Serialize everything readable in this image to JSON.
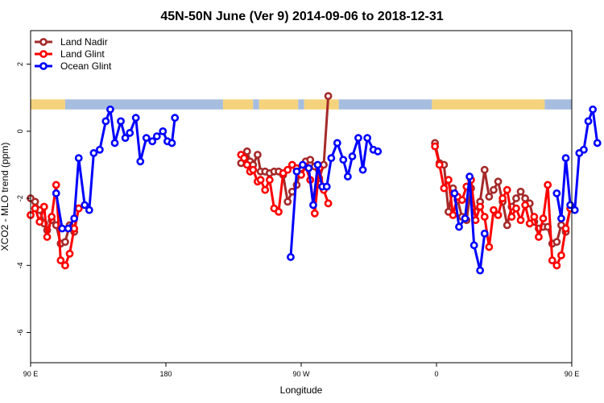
{
  "chart_data": {
    "type": "line",
    "title": "45N-50N June (Ver 9)   2014-09-06 to 2018-12-31",
    "xlabel": "Longitude",
    "ylabel": "XCO2 - MLO trend (ppm)",
    "xlim": [
      90,
      450
    ],
    "ylim": [
      -6.9,
      3.0
    ],
    "x_ticks": [
      {
        "value": 90,
        "label": "90 E"
      },
      {
        "value": 180,
        "label": "180"
      },
      {
        "value": 270,
        "label": "90 W"
      },
      {
        "value": 360,
        "label": "0"
      },
      {
        "value": 450,
        "label": "90 E"
      },
      {
        "value": 540,
        "label": "180"
      }
    ],
    "y_ticks": [
      {
        "value": 2,
        "label": "2"
      },
      {
        "value": 0,
        "label": "0"
      },
      {
        "value": -2,
        "label": "-2"
      },
      {
        "value": -4,
        "label": "-4"
      },
      {
        "value": -6,
        "label": "-6"
      }
    ],
    "land_mask_band": {
      "y_range": [
        0.65,
        0.95
      ],
      "land_color": "#F5D37C",
      "ocean_color": "#A6BDDF"
    },
    "legend_position": "top-left",
    "series": [
      {
        "name": "Land Nadir",
        "color": "#A52A2A",
        "segments": [
          [
            [
              90,
              -2.0
            ],
            [
              93,
              -2.1
            ],
            [
              96,
              -2.35
            ],
            [
              99,
              -2.75
            ],
            [
              101,
              -2.95
            ],
            [
              104,
              -2.65
            ],
            [
              107,
              -2.8
            ],
            [
              110,
              -3.35
            ],
            [
              113,
              -3.3
            ],
            [
              116,
              -2.8
            ],
            [
              119,
              -3.0
            ],
            [
              122,
              -2.3
            ]
          ],
          [
            [
              230,
              -0.95
            ],
            [
              232,
              -0.75
            ],
            [
              234,
              -0.6
            ],
            [
              236,
              -0.9
            ],
            [
              238,
              -1.0
            ],
            [
              241,
              -0.7
            ],
            [
              243,
              -1.2
            ],
            [
              246,
              -1.2
            ],
            [
              249,
              -1.25
            ],
            [
              252,
              -1.2
            ],
            [
              255,
              -1.2
            ],
            [
              258,
              -1.3
            ],
            [
              261,
              -2.1
            ],
            [
              264,
              -1.8
            ],
            [
              267,
              -1.6
            ],
            [
              270,
              -1.1
            ],
            [
              273,
              -0.9
            ],
            [
              276,
              -0.85
            ],
            [
              279,
              -1.05
            ],
            [
              282,
              -1.4
            ],
            [
              285,
              -1.0
            ],
            [
              288,
              1.05
            ]
          ],
          [
            [
              359,
              -0.35
            ],
            [
              362,
              -0.95
            ],
            [
              365,
              -1.0
            ],
            [
              368,
              -2.4
            ],
            [
              371,
              -1.7
            ],
            [
              374,
              -2.05
            ],
            [
              377,
              -2.55
            ],
            [
              380,
              -2.65
            ],
            [
              383,
              -1.7
            ],
            [
              386,
              -2.4
            ],
            [
              389,
              -2.1
            ],
            [
              392,
              -1.15
            ],
            [
              395,
              -1.95
            ],
            [
              398,
              -1.75
            ],
            [
              401,
              -1.5
            ],
            [
              404,
              -2.1
            ],
            [
              407,
              -2.8
            ],
            [
              410,
              -2.25
            ],
            [
              413,
              -2.0
            ],
            [
              416,
              -1.8
            ],
            [
              419,
              -2.0
            ],
            [
              422,
              -2.15
            ],
            [
              425,
              -2.7
            ],
            [
              428,
              -2.9
            ],
            [
              431,
              -2.85
            ],
            [
              434,
              -2.85
            ],
            [
              437,
              -3.35
            ],
            [
              440,
              -3.3
            ],
            [
              443,
              -2.8
            ],
            [
              446,
              -3.0
            ],
            [
              449,
              -2.3
            ]
          ]
        ]
      },
      {
        "name": "Land Glint",
        "color": "#FF0000",
        "segments": [
          [
            [
              90,
              -2.5
            ],
            [
              93,
              -2.3
            ],
            [
              96,
              -2.7
            ],
            [
              99,
              -2.25
            ],
            [
              101,
              -3.15
            ],
            [
              104,
              -2.55
            ],
            [
              107,
              -1.6
            ],
            [
              110,
              -3.85
            ],
            [
              113,
              -4.0
            ],
            [
              116,
              -3.65
            ],
            [
              119,
              -2.9
            ],
            [
              122,
              -2.3
            ]
          ],
          [
            [
              230,
              -0.7
            ],
            [
              232,
              -0.8
            ],
            [
              234,
              -1.0
            ],
            [
              236,
              -1.2
            ],
            [
              238,
              -1.15
            ],
            [
              241,
              -1.5
            ],
            [
              243,
              -1.45
            ],
            [
              246,
              -1.75
            ],
            [
              249,
              -1.45
            ],
            [
              252,
              -2.3
            ],
            [
              255,
              -2.4
            ],
            [
              258,
              -1.25
            ],
            [
              261,
              -1.15
            ],
            [
              264,
              -1.0
            ],
            [
              267,
              -1.1
            ],
            [
              270,
              -1.3
            ],
            [
              273,
              -1.05
            ],
            [
              276,
              -1.45
            ],
            [
              279,
              -2.45
            ],
            [
              282,
              -1.1
            ],
            [
              285,
              -1.75
            ],
            [
              288,
              -2.15
            ]
          ],
          [
            [
              359,
              -0.45
            ],
            [
              362,
              -1.0
            ],
            [
              365,
              -1.7
            ],
            [
              368,
              -1.45
            ],
            [
              371,
              -2.5
            ],
            [
              374,
              -1.95
            ],
            [
              377,
              -2.05
            ],
            [
              380,
              -1.65
            ],
            [
              383,
              -1.45
            ],
            [
              386,
              -2.65
            ],
            [
              389,
              -2.25
            ],
            [
              392,
              -2.55
            ],
            [
              395,
              -3.45
            ],
            [
              398,
              -2.35
            ],
            [
              401,
              -2.5
            ],
            [
              404,
              -2.0
            ],
            [
              407,
              -1.75
            ],
            [
              410,
              -2.55
            ],
            [
              413,
              -2.3
            ],
            [
              416,
              -2.65
            ],
            [
              419,
              -2.2
            ],
            [
              422,
              -2.75
            ],
            [
              425,
              -2.55
            ],
            [
              428,
              -3.15
            ],
            [
              431,
              -2.6
            ],
            [
              434,
              -1.6
            ],
            [
              437,
              -3.85
            ],
            [
              440,
              -4.0
            ],
            [
              443,
              -3.7
            ],
            [
              446,
              -2.9
            ],
            [
              449,
              -2.3
            ]
          ]
        ]
      },
      {
        "name": "Ocean Glint",
        "color": "#0000FF",
        "segments": [
          [
            [
              107,
              -1.85
            ],
            [
              111,
              -2.9
            ],
            [
              115,
              -2.9
            ],
            [
              119,
              -2.6
            ],
            [
              122,
              -0.8
            ],
            [
              126,
              -2.2
            ],
            [
              129,
              -2.35
            ],
            [
              132,
              -0.65
            ],
            [
              136,
              -0.55
            ],
            [
              140,
              0.3
            ],
            [
              143,
              0.65
            ],
            [
              146,
              -0.35
            ],
            [
              150,
              0.3
            ],
            [
              153,
              -0.2
            ],
            [
              156,
              -0.05
            ],
            [
              160,
              0.4
            ],
            [
              163,
              -0.9
            ],
            [
              167,
              -0.2
            ],
            [
              171,
              -0.3
            ],
            [
              174,
              -0.15
            ],
            [
              178,
              0.0
            ],
            [
              181,
              -0.3
            ],
            [
              184,
              -0.35
            ],
            [
              186,
              0.4
            ]
          ],
          [
            [
              263,
              -3.75
            ],
            [
              267,
              -1.2
            ],
            [
              271,
              -1.0
            ],
            [
              275,
              -1.1
            ],
            [
              278,
              -2.2
            ],
            [
              281,
              -1.0
            ],
            [
              284,
              -1.65
            ],
            [
              287,
              -1.65
            ],
            [
              290,
              -0.8
            ],
            [
              294,
              -0.35
            ],
            [
              298,
              -0.85
            ],
            [
              301,
              -1.35
            ],
            [
              304,
              -0.75
            ],
            [
              308,
              -0.2
            ],
            [
              311,
              -1.15
            ],
            [
              314,
              -0.2
            ],
            [
              318,
              -0.55
            ],
            [
              321,
              -0.6
            ]
          ],
          [
            [
              372,
              -1.85
            ],
            [
              375,
              -2.85
            ],
            [
              379,
              -2.6
            ],
            [
              382,
              -1.35
            ],
            [
              385,
              -3.4
            ],
            [
              389,
              -4.15
            ],
            [
              392,
              -3.05
            ]
          ],
          [
            [
              440,
              -1.85
            ],
            [
              443,
              -2.6
            ],
            [
              446,
              -0.8
            ],
            [
              449,
              -2.2
            ],
            [
              452,
              -2.35
            ],
            [
              455,
              -0.65
            ],
            [
              458,
              -0.55
            ],
            [
              461,
              0.3
            ],
            [
              464,
              0.65
            ],
            [
              467,
              -0.35
            ]
          ]
        ]
      }
    ]
  }
}
